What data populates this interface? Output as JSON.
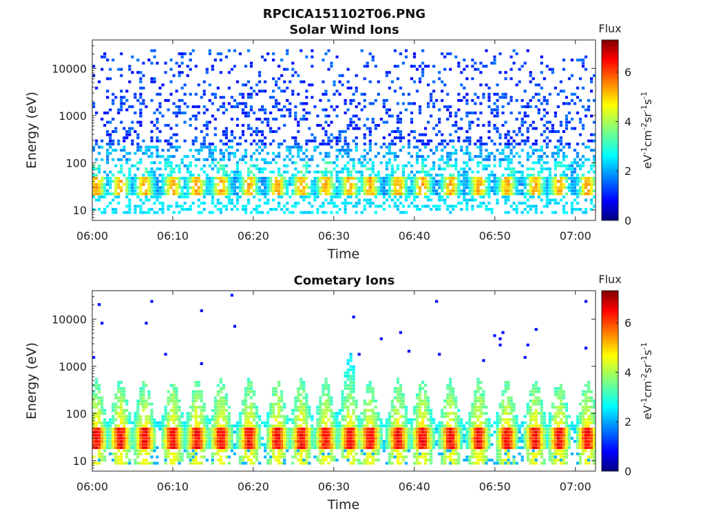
{
  "figure": {
    "filename": "RPCICA151102T06.PNG"
  },
  "colormap": {
    "name": "jet",
    "stops": [
      "#00007f",
      "#0000ff",
      "#007fff",
      "#00ffff",
      "#7fff7f",
      "#ffff00",
      "#ff7f00",
      "#ff0000",
      "#7f0000"
    ]
  },
  "chart_data": [
    {
      "type": "heatmap",
      "title": "Solar Wind Ions",
      "xlabel": "Time",
      "ylabel": "Energy (eV)",
      "x_ticks": [
        "06:00",
        "06:10",
        "06:20",
        "06:30",
        "06:40",
        "06:50",
        "07:00"
      ],
      "xlim_minutes": [
        0,
        62.5
      ],
      "y_scale": "log",
      "ylim": [
        6,
        40000
      ],
      "y_ticks": [
        10,
        100,
        1000,
        10000
      ],
      "y_tick_labels": [
        "10",
        "100",
        "1000",
        "10000"
      ],
      "colorbar": {
        "title": "Flux",
        "units": "eV-1cm-2sr-1s-1",
        "range": [
          0,
          7.3
        ],
        "ticks": [
          0,
          2,
          4,
          6
        ],
        "tick_labels": [
          "0",
          "2",
          "4",
          "6"
        ]
      },
      "description_values": {
        "bursts_minutes": [
          0.5,
          3.5,
          6.5,
          10,
          13,
          16,
          19.5,
          23,
          26,
          29,
          32,
          34.5,
          38,
          41,
          44.5,
          48,
          51.5,
          55,
          58,
          61.5
        ],
        "core_energy_eV": [
          20,
          45
        ],
        "core_flux": 5.2,
        "background_flux": 1.6,
        "scatter_range_eV": [
          100,
          25000
        ]
      }
    },
    {
      "type": "heatmap",
      "title": "Cometary Ions",
      "xlabel": "Time",
      "ylabel": "Energy (eV)",
      "x_ticks": [
        "06:00",
        "06:10",
        "06:20",
        "06:30",
        "06:40",
        "06:50",
        "07:00"
      ],
      "xlim_minutes": [
        0,
        62.5
      ],
      "y_scale": "log",
      "ylim": [
        6,
        40000
      ],
      "y_ticks": [
        10,
        100,
        1000,
        10000
      ],
      "y_tick_labels": [
        "10",
        "100",
        "1000",
        "10000"
      ],
      "colorbar": {
        "title": "Flux",
        "units": "eV-1cm-2sr-1s-1",
        "range": [
          0,
          7.3
        ],
        "ticks": [
          0,
          2,
          4,
          6
        ],
        "tick_labels": [
          "0",
          "2",
          "4",
          "6"
        ]
      },
      "description_values": {
        "bursts_minutes": [
          0.5,
          3.5,
          6.5,
          10,
          13,
          16,
          19.5,
          23,
          26,
          29,
          32,
          34.5,
          38,
          41,
          44.5,
          48,
          51.5,
          55,
          58,
          61.5
        ],
        "core_energy_eV": [
          15,
          45
        ],
        "core_flux": 6.4,
        "plume_top_eV": 500,
        "strong_plume_minute": 31.5,
        "strong_plume_top_eV": 1800
      }
    }
  ]
}
